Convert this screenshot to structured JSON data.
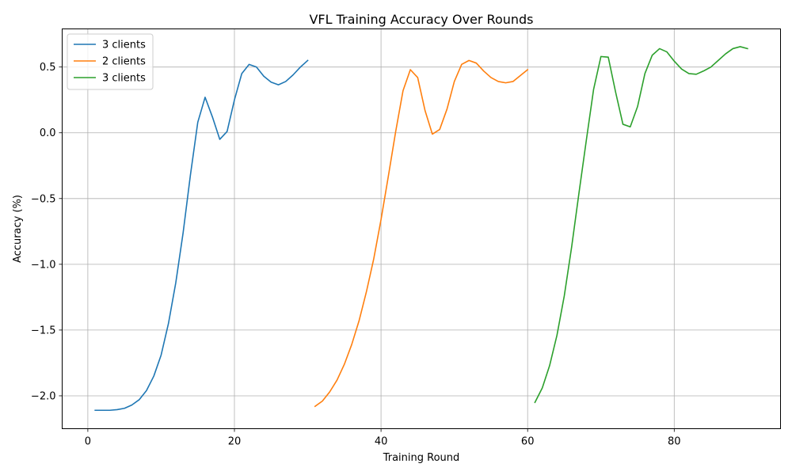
{
  "chart_data": {
    "type": "line",
    "title": "VFL Training Accuracy Over Rounds",
    "xlabel": "Training Round",
    "ylabel": "Accuracy (%)",
    "xlim": [
      -3.5,
      94.5
    ],
    "ylim": [
      -2.25,
      0.79
    ],
    "xticks": [
      0,
      20,
      40,
      60,
      80
    ],
    "yticks": [
      -2.0,
      -1.5,
      -1.0,
      -0.5,
      0.0,
      0.5
    ],
    "xtick_labels": [
      "0",
      "20",
      "40",
      "60",
      "80"
    ],
    "ytick_labels": [
      "−2.0",
      "−1.5",
      "−1.0",
      "−0.5",
      "0.0",
      "0.5"
    ],
    "grid": true,
    "legend_position": "top-left",
    "series": [
      {
        "name": "3 clients",
        "color": "#1f77b4",
        "x": [
          1,
          2,
          3,
          4,
          5,
          6,
          7,
          8,
          9,
          10,
          11,
          12,
          13,
          14,
          15,
          16,
          17,
          18,
          19,
          20,
          21,
          22,
          23,
          24,
          25,
          26,
          27,
          28,
          29,
          30
        ],
        "y": [
          -2.11,
          -2.11,
          -2.11,
          -2.105,
          -2.095,
          -2.07,
          -2.03,
          -1.96,
          -1.85,
          -1.69,
          -1.45,
          -1.14,
          -0.76,
          -0.32,
          0.08,
          0.27,
          0.12,
          -0.05,
          0.01,
          0.25,
          0.45,
          0.52,
          0.5,
          0.43,
          0.385,
          0.365,
          0.39,
          0.44,
          0.5,
          0.55
        ]
      },
      {
        "name": "2 clients",
        "color": "#ff7f0e",
        "x": [
          31,
          32,
          33,
          34,
          35,
          36,
          37,
          38,
          39,
          40,
          41,
          42,
          43,
          44,
          45,
          46,
          47,
          48,
          49,
          50,
          51,
          52,
          53,
          54,
          55,
          56,
          57,
          58,
          59,
          60
        ],
        "y": [
          -2.08,
          -2.04,
          -1.97,
          -1.88,
          -1.76,
          -1.61,
          -1.43,
          -1.21,
          -0.96,
          -0.66,
          -0.33,
          0.01,
          0.32,
          0.48,
          0.42,
          0.17,
          -0.01,
          0.025,
          0.18,
          0.39,
          0.52,
          0.55,
          0.53,
          0.47,
          0.42,
          0.39,
          0.38,
          0.39,
          0.435,
          0.48
        ]
      },
      {
        "name": "3 clients",
        "color": "#2ca02c",
        "x": [
          61,
          62,
          63,
          64,
          65,
          66,
          67,
          68,
          69,
          70,
          71,
          72,
          73,
          74,
          75,
          76,
          77,
          78,
          79,
          80,
          81,
          82,
          83,
          84,
          85,
          86,
          87,
          88,
          89,
          90
        ],
        "y": [
          -2.05,
          -1.94,
          -1.77,
          -1.54,
          -1.24,
          -0.87,
          -0.46,
          -0.06,
          0.33,
          0.58,
          0.575,
          0.31,
          0.065,
          0.045,
          0.2,
          0.45,
          0.59,
          0.64,
          0.615,
          0.545,
          0.485,
          0.45,
          0.445,
          0.47,
          0.5,
          0.55,
          0.6,
          0.64,
          0.655,
          0.64
        ]
      }
    ]
  }
}
